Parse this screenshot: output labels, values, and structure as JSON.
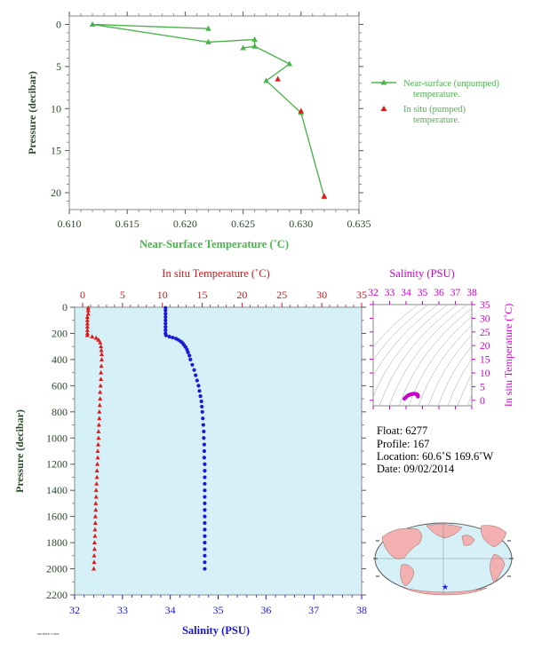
{
  "chart_data": [
    {
      "type": "line",
      "xlabel": "Near-Surface Temperature (˚C)",
      "ylabel": "Pressure (decibar)",
      "xlim": [
        0.61,
        0.635
      ],
      "ylim": [
        22,
        -1
      ],
      "x_ticks": [
        "0.610",
        "0.615",
        "0.620",
        "0.625",
        "0.630",
        "0.635"
      ],
      "y_ticks": [
        "0",
        "5",
        "10",
        "15",
        "20"
      ],
      "grid": false,
      "legend_position": "right",
      "series": [
        {
          "name": "Near-surface (unpumped) temperature.",
          "color": "#4db34d",
          "marker": "triangle",
          "points": [
            [
              0.622,
              0.5
            ],
            [
              0.612,
              0.0
            ],
            [
              0.622,
              2.1
            ],
            [
              0.626,
              1.8
            ],
            [
              0.626,
              2.6
            ],
            [
              0.625,
              2.8
            ],
            [
              0.626,
              2.6
            ],
            [
              0.629,
              4.7
            ],
            [
              0.627,
              6.7
            ],
            [
              0.63,
              10.5
            ],
            [
              0.632,
              20.5
            ]
          ]
        },
        {
          "name": "In situ (pumped) temperature.",
          "color": "#e01a1a",
          "marker": "triangle",
          "points": [
            [
              0.628,
              6.5
            ],
            [
              0.63,
              10.3
            ],
            [
              0.632,
              20.4
            ]
          ]
        }
      ]
    },
    {
      "type": "scatter",
      "top_axis_label": "In situ Temperature (˚C)",
      "bottom_axis_label": "Salinity (PSU)",
      "ylabel": "Pressure (decibar)",
      "temperature_xlim": [
        -1,
        35
      ],
      "salinity_xlim": [
        32,
        38
      ],
      "ylim": [
        2200,
        0
      ],
      "temperature_ticks": [
        "0",
        "5",
        "10",
        "15",
        "20",
        "25",
        "30",
        "35"
      ],
      "salinity_ticks": [
        "32",
        "33",
        "34",
        "35",
        "36",
        "37",
        "38"
      ],
      "y_ticks": [
        "0",
        "200",
        "400",
        "600",
        "800",
        "1000",
        "1200",
        "1400",
        "1600",
        "1800",
        "2000",
        "2200"
      ],
      "series": [
        {
          "name": "temperature",
          "color": "#e01a1a",
          "marker": "triangle",
          "points": [
            [
              0.7,
              5
            ],
            [
              0.7,
              25
            ],
            [
              0.7,
              50
            ],
            [
              0.6,
              75
            ],
            [
              0.6,
              100
            ],
            [
              0.6,
              125
            ],
            [
              0.6,
              150
            ],
            [
              0.6,
              175
            ],
            [
              0.6,
              200
            ],
            [
              0.6,
              215
            ],
            [
              1.2,
              225
            ],
            [
              1.7,
              235
            ],
            [
              2.0,
              250
            ],
            [
              2.2,
              270
            ],
            [
              2.3,
              300
            ],
            [
              2.35,
              330
            ],
            [
              2.4,
              360
            ],
            [
              2.4,
              400
            ],
            [
              2.35,
              450
            ],
            [
              2.3,
              500
            ],
            [
              2.3,
              550
            ],
            [
              2.25,
              600
            ],
            [
              2.2,
              650
            ],
            [
              2.2,
              700
            ],
            [
              2.15,
              750
            ],
            [
              2.1,
              800
            ],
            [
              2.1,
              850
            ],
            [
              2.05,
              900
            ],
            [
              2.0,
              950
            ],
            [
              2.0,
              1000
            ],
            [
              1.95,
              1050
            ],
            [
              1.9,
              1100
            ],
            [
              1.9,
              1150
            ],
            [
              1.85,
              1200
            ],
            [
              1.8,
              1250
            ],
            [
              1.8,
              1300
            ],
            [
              1.75,
              1350
            ],
            [
              1.7,
              1400
            ],
            [
              1.7,
              1450
            ],
            [
              1.65,
              1500
            ],
            [
              1.65,
              1550
            ],
            [
              1.6,
              1600
            ],
            [
              1.6,
              1650
            ],
            [
              1.55,
              1700
            ],
            [
              1.55,
              1750
            ],
            [
              1.5,
              1800
            ],
            [
              1.5,
              1850
            ],
            [
              1.45,
              1900
            ],
            [
              1.45,
              1950
            ],
            [
              1.4,
              2000
            ]
          ]
        },
        {
          "name": "salinity",
          "color": "#1a1ad6",
          "marker": "circle",
          "points": [
            [
              33.9,
              5
            ],
            [
              33.9,
              25
            ],
            [
              33.9,
              50
            ],
            [
              33.9,
              75
            ],
            [
              33.9,
              100
            ],
            [
              33.9,
              125
            ],
            [
              33.9,
              150
            ],
            [
              33.9,
              175
            ],
            [
              33.9,
              200
            ],
            [
              33.91,
              215
            ],
            [
              33.98,
              225
            ],
            [
              34.05,
              232
            ],
            [
              34.12,
              240
            ],
            [
              34.17,
              250
            ],
            [
              34.22,
              262
            ],
            [
              34.26,
              275
            ],
            [
              34.29,
              290
            ],
            [
              34.32,
              305
            ],
            [
              34.35,
              325
            ],
            [
              34.37,
              345
            ],
            [
              34.4,
              370
            ],
            [
              34.42,
              400
            ],
            [
              34.46,
              440
            ],
            [
              34.5,
              480
            ],
            [
              34.53,
              520
            ],
            [
              34.56,
              560
            ],
            [
              34.59,
              600
            ],
            [
              34.61,
              640
            ],
            [
              34.63,
              680
            ],
            [
              34.65,
              720
            ],
            [
              34.66,
              760
            ],
            [
              34.67,
              800
            ],
            [
              34.68,
              850
            ],
            [
              34.69,
              900
            ],
            [
              34.7,
              950
            ],
            [
              34.7,
              1000
            ],
            [
              34.71,
              1050
            ],
            [
              34.71,
              1100
            ],
            [
              34.71,
              1150
            ],
            [
              34.72,
              1200
            ],
            [
              34.72,
              1250
            ],
            [
              34.72,
              1300
            ],
            [
              34.72,
              1350
            ],
            [
              34.72,
              1400
            ],
            [
              34.72,
              1450
            ],
            [
              34.72,
              1500
            ],
            [
              34.72,
              1550
            ],
            [
              34.72,
              1600
            ],
            [
              34.72,
              1650
            ],
            [
              34.72,
              1700
            ],
            [
              34.72,
              1750
            ],
            [
              34.72,
              1800
            ],
            [
              34.72,
              1850
            ],
            [
              34.72,
              1900
            ],
            [
              34.72,
              1950
            ],
            [
              34.72,
              2000
            ]
          ]
        }
      ]
    },
    {
      "type": "scatter",
      "xlabel": "Salinity (PSU)",
      "ylabel": "In situ Temperature (˚C)",
      "xlim": [
        32,
        38
      ],
      "ylim": [
        -2,
        35
      ],
      "x_ticks": [
        "32",
        "33",
        "34",
        "35",
        "36",
        "37",
        "38"
      ],
      "y_ticks": [
        "0",
        "5",
        "10",
        "15",
        "20",
        "25",
        "30",
        "35"
      ],
      "color": "#cc00cc",
      "points": [
        [
          33.9,
          0.6
        ],
        [
          34.0,
          1.2
        ],
        [
          34.1,
          1.7
        ],
        [
          34.2,
          2.0
        ],
        [
          34.3,
          2.2
        ],
        [
          34.4,
          2.35
        ],
        [
          34.5,
          2.4
        ],
        [
          34.6,
          2.3
        ],
        [
          34.65,
          2.2
        ],
        [
          34.7,
          2.0
        ],
        [
          34.72,
          1.8
        ],
        [
          34.72,
          1.6
        ],
        [
          34.72,
          1.4
        ]
      ]
    }
  ],
  "info": {
    "float": "Float:  6277",
    "profile": "Profile:  167",
    "location": "Location:  60.6˚S  169.6˚W",
    "date": "Date:  09/02/2014"
  },
  "footer_code": "PROFILE CODE",
  "colors": {
    "green": "#4db34d",
    "red": "#e01a1a",
    "blue": "#1a1ad6",
    "magenta": "#cc00cc",
    "plot_bg": "#d6f0f8",
    "axis_text": "#2a4a2a"
  }
}
